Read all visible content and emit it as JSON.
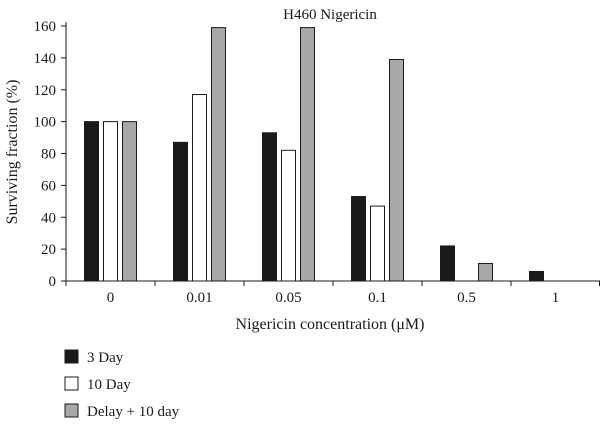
{
  "chart_data": {
    "type": "bar",
    "title": "H460 Nigericin",
    "xlabel": "Nigericin concentration (μM)",
    "ylabel": "Surviving fraction (%)",
    "categories": [
      "0",
      "0.01",
      "0.05",
      "0.1",
      "0.5",
      "1"
    ],
    "ylim": [
      0,
      160
    ],
    "yticks": [
      0,
      20,
      40,
      60,
      80,
      100,
      120,
      140,
      160
    ],
    "grid": false,
    "legend_position": "bottom-left",
    "series": [
      {
        "name": "3 Day",
        "color": "#1a1a1a",
        "values": [
          100,
          87,
          93,
          53,
          22,
          6
        ]
      },
      {
        "name": "10 Day",
        "color": "#ffffff",
        "values": [
          100,
          117,
          82,
          47,
          null,
          null
        ]
      },
      {
        "name": "Delay + 10 day",
        "color": "#a8a8a8",
        "values": [
          100,
          159,
          159,
          139,
          11,
          null
        ]
      }
    ]
  }
}
